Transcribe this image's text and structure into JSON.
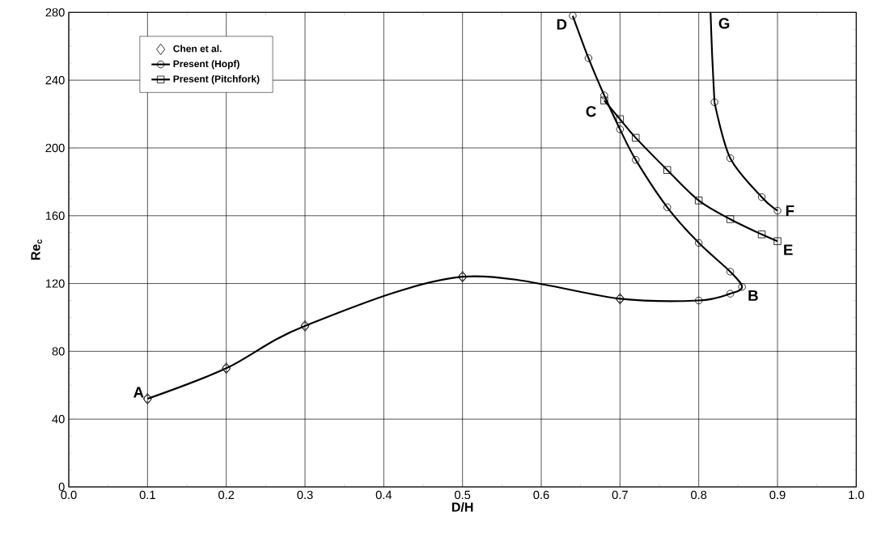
{
  "chart_data": {
    "type": "line",
    "xlabel": "D/H",
    "ylabel": "Re$_{c}$",
    "xlim": [
      0,
      1
    ],
    "ylim": [
      0,
      280
    ],
    "xticks": [
      {
        "value": 0,
        "label": "0.0"
      },
      0.1,
      0.2,
      0.3,
      0.4,
      0.5,
      0.6,
      0.7,
      0.8,
      0.9,
      {
        "value": 1,
        "label": "1.0"
      }
    ],
    "yticks": [
      0,
      40,
      80,
      120,
      160,
      200,
      240,
      280
    ],
    "grid": true,
    "legend": "top left",
    "series": [
      {
        "name": "Chen et al.",
        "type": "scatter",
        "marker": "diamond",
        "color": "#000000",
        "x": [
          0.1,
          0.2,
          0.3,
          0.5,
          0.7
        ],
        "values": [
          52,
          70,
          95,
          124,
          111
        ]
      },
      {
        "name": "Present (Hopf)",
        "marker": "circle",
        "color": "#000000",
        "x": [
          0.1,
          0.2,
          0.3,
          0.5,
          0.7,
          0.8,
          0.84,
          0.855,
          0.84,
          0.8,
          0.76,
          0.72,
          0.7,
          0.68,
          0.66,
          0.64
        ],
        "values": [
          52,
          70,
          95,
          124,
          111,
          110,
          114,
          118,
          127,
          144,
          165,
          193,
          211,
          231,
          253,
          278
        ]
      },
      {
        "name": "Present (Pitchfork)",
        "marker": "square",
        "color": "#000000",
        "x": [
          0.68,
          0.7,
          0.72,
          0.76,
          0.8,
          0.84,
          0.88,
          0.9
        ],
        "values": [
          228,
          217,
          206,
          187,
          169,
          158,
          149,
          145
        ]
      },
      {
        "marker": "circle",
        "color": "#000000",
        "x": [
          0.82,
          0.84,
          0.88,
          0.9
        ],
        "values": [
          227,
          194,
          171,
          163
        ]
      },
      {
        "marker": "none",
        "color": "#000000",
        "x": [
          0.815,
          0.817,
          0.82
        ],
        "values": [
          280,
          255,
          227
        ]
      }
    ],
    "annotations": [
      {
        "text": "A",
        "x": 0.1,
        "y": 52
      },
      {
        "text": "B",
        "x": 0.855,
        "y": 118
      },
      {
        "text": "C",
        "x": 0.68,
        "y": 228
      },
      {
        "text": "D",
        "x": 0.64,
        "y": 278
      },
      {
        "text": "E",
        "x": 0.9,
        "y": 145
      },
      {
        "text": "F",
        "x": 0.9,
        "y": 163
      },
      {
        "text": "G",
        "x": 0.815,
        "y": 280
      }
    ]
  }
}
